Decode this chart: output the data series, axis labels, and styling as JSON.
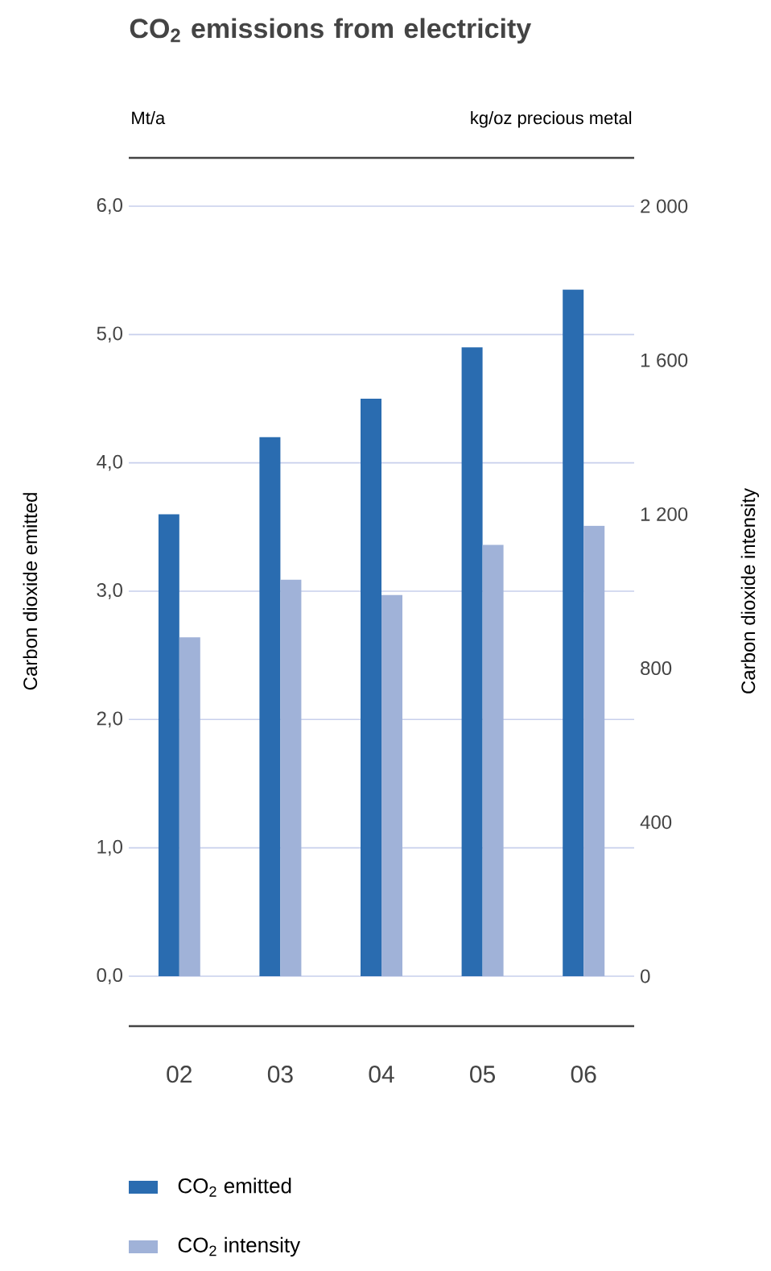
{
  "chart_data": {
    "type": "bar",
    "title": "CO$_{2}$ emissions from electricity",
    "ylabel": "Carbon dioxide emitted",
    "y2label": "Carbon dioxide intensity",
    "annotations": [
      "Mt/a",
      "kg/oz precious metal"
    ],
    "categories": [
      "02",
      "03",
      "04",
      "05",
      "06"
    ],
    "series": [
      {
        "name": "CO$_{2}$ emitted",
        "color": "#2a6cb0",
        "values": [
          3.6,
          4.2,
          4.5,
          4.9,
          5.35
        ]
      },
      {
        "name": "CO$_{2}$ intensity",
        "color": "#a0b2d8",
        "axis": "y2",
        "values": [
          880,
          1030,
          990,
          1120,
          1170
        ]
      }
    ],
    "ylim": [
      0,
      6
    ],
    "yticks": [
      {
        "value": 0,
        "label": "0,0"
      },
      {
        "value": 1,
        "label": "1,0"
      },
      {
        "value": 2,
        "label": "2,0"
      },
      {
        "value": 3,
        "label": "3,0"
      },
      {
        "value": 4,
        "label": "4,0"
      },
      {
        "value": 5,
        "label": "5,0"
      },
      {
        "value": 6,
        "label": "6,0"
      }
    ],
    "y2lim": [
      0,
      2000
    ],
    "y2ticks": [
      0,
      400,
      800,
      {
        "value": 1200,
        "label": "1 200"
      },
      {
        "value": 1600,
        "label": "1 600"
      },
      {
        "value": 2000,
        "label": "2 000"
      }
    ],
    "grid": "y",
    "legend": "bottom"
  }
}
